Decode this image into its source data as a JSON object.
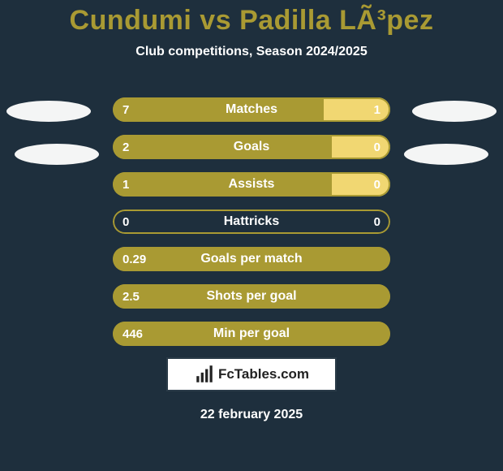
{
  "colors": {
    "background": "#1e2f3d",
    "text": "#ffffff",
    "player1_accent": "#a99a33",
    "player2_accent": "#f1d772",
    "ellipse": "#f4f5f5",
    "brand_border": "#2a3b48"
  },
  "title": {
    "player1": "Cundumi",
    "vs": "vs",
    "player2": "Padilla LÃ³pez",
    "title_fontsize": 34
  },
  "subtitle": "Club competitions, Season 2024/2025",
  "bars": [
    {
      "label": "Matches",
      "left_val": "7",
      "right_val": "1",
      "left_pct": 76,
      "right_pct": 24
    },
    {
      "label": "Goals",
      "left_val": "2",
      "right_val": "0",
      "left_pct": 79,
      "right_pct": 21
    },
    {
      "label": "Assists",
      "left_val": "1",
      "right_val": "0",
      "left_pct": 79,
      "right_pct": 21
    },
    {
      "label": "Hattricks",
      "left_val": "0",
      "right_val": "0",
      "left_pct": 0,
      "right_pct": 0
    },
    {
      "label": "Goals per match",
      "left_val": "0.29",
      "right_val": "",
      "left_pct": 100,
      "right_pct": 0
    },
    {
      "label": "Shots per goal",
      "left_val": "2.5",
      "right_val": "",
      "left_pct": 100,
      "right_pct": 0
    },
    {
      "label": "Min per goal",
      "left_val": "446",
      "right_val": "",
      "left_pct": 100,
      "right_pct": 0
    }
  ],
  "brand": "FcTables.com",
  "date": "22 february 2025"
}
